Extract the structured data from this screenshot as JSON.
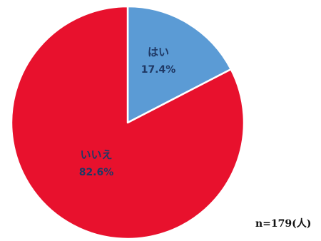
{
  "chart_data": {
    "type": "pie",
    "title": "",
    "slices": [
      {
        "label": "はい",
        "value": 17.4,
        "value_label": "17.4%",
        "color": "#5B9BD5"
      },
      {
        "label": "いいえ",
        "value": 82.6,
        "value_label": "82.6%",
        "color": "#E8112D"
      }
    ],
    "start_angle": "12 o'clock",
    "direction": "clockwise",
    "label_color": "#1F3864",
    "legend": "none",
    "note": "n=179(人)"
  }
}
